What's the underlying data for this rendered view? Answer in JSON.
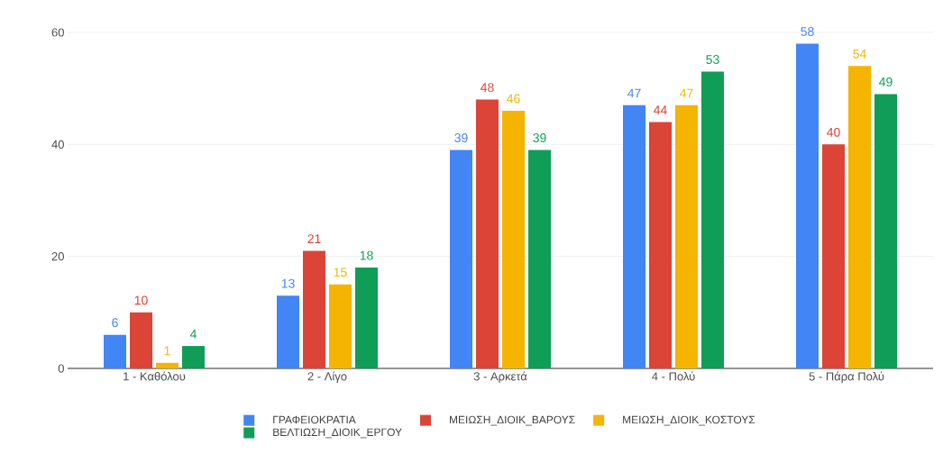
{
  "chart_data": {
    "type": "bar",
    "categories": [
      "1 - Καθόλου",
      "2 - Λίγο",
      "3 - Αρκετά",
      "4 - Πολύ",
      "5 - Πάρα Πολύ"
    ],
    "series": [
      {
        "name": "ΓΡΑΦΕΙΟΚΡΑΤΙΑ",
        "color": "#4285f4",
        "values": [
          6,
          13,
          39,
          47,
          58
        ]
      },
      {
        "name": "ΜΕΙΩΣΗ_ΔΙΟΙΚ_ΒΑΡΟΥΣ",
        "color": "#db4437",
        "values": [
          10,
          21,
          48,
          44,
          40
        ]
      },
      {
        "name": "ΜΕΙΩΣΗ_ΔΙΟΙΚ_ΚΟΣΤΟΥΣ",
        "color": "#f4b400",
        "values": [
          1,
          15,
          46,
          47,
          54
        ]
      },
      {
        "name": "ΒΕΛΤΙΩΣΗ_ΔΙΟΙΚ_ΕΡΓΟΥ",
        "color": "#0f9d58",
        "values": [
          4,
          18,
          39,
          53,
          49
        ]
      }
    ],
    "ylim": [
      0,
      60
    ],
    "yticks": [
      0,
      20,
      40,
      60
    ],
    "grid": "y",
    "legend": "bottom",
    "data_labels": true
  }
}
